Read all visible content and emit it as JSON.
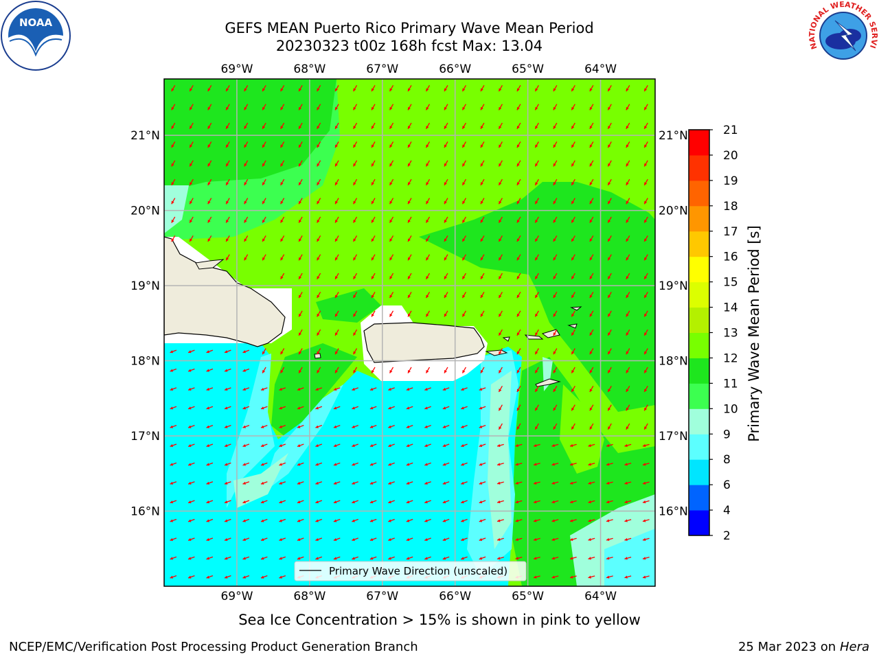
{
  "title": {
    "line1": "GEFS MEAN Puerto Rico Primary Wave Mean Period",
    "line2": "20230323 t00z 168h fcst   Max: 13.04"
  },
  "map": {
    "lon_range": [
      -70.0,
      -63.25
    ],
    "lat_range": [
      15.0,
      21.75
    ],
    "lon_ticks": [
      {
        "value": -69,
        "label": "69°W"
      },
      {
        "value": -68,
        "label": "68°W"
      },
      {
        "value": -67,
        "label": "67°W"
      },
      {
        "value": -66,
        "label": "66°W"
      },
      {
        "value": -65,
        "label": "65°W"
      },
      {
        "value": -64,
        "label": "64°W"
      }
    ],
    "lat_ticks": [
      {
        "value": 21,
        "label": "21°N"
      },
      {
        "value": 20,
        "label": "20°N"
      },
      {
        "value": 19,
        "label": "19°N"
      },
      {
        "value": 18,
        "label": "18°N"
      },
      {
        "value": 17,
        "label": "17°N"
      },
      {
        "value": 16,
        "label": "16°N"
      }
    ],
    "legend_label": "Primary Wave Direction (unscaled)",
    "legend_position": "bottom-center",
    "grid": true,
    "arrow_color": "#ff0000",
    "land_color": "#efecdc"
  },
  "colorbar": {
    "title": "Primary Wave Mean Period [s]",
    "levels": [
      "2",
      "4",
      "6",
      "8",
      "9",
      "10",
      "11",
      "12",
      "13",
      "14",
      "15",
      "16",
      "17",
      "18",
      "19",
      "20",
      "21"
    ],
    "colors": [
      "#0000ff",
      "#0064ff",
      "#00e5ff",
      "#5cffff",
      "#a0ffdc",
      "#3cff50",
      "#1ee61e",
      "#78ff00",
      "#b4f000",
      "#dcff00",
      "#ffff00",
      "#ffc800",
      "#ff9600",
      "#ff6400",
      "#ff3200",
      "#ff0000"
    ]
  },
  "caption": "Sea Ice Concentration > 15% is shown in pink to yellow",
  "footer": {
    "left": "NCEP/EMC/Verification Post Processing Product Generation Branch",
    "right_date": "25 Mar 2023 on",
    "right_host": "Hera"
  },
  "logos": {
    "noaa_text": "NOAA",
    "nws_text": "NATIONAL WEATHER SERVICE"
  }
}
